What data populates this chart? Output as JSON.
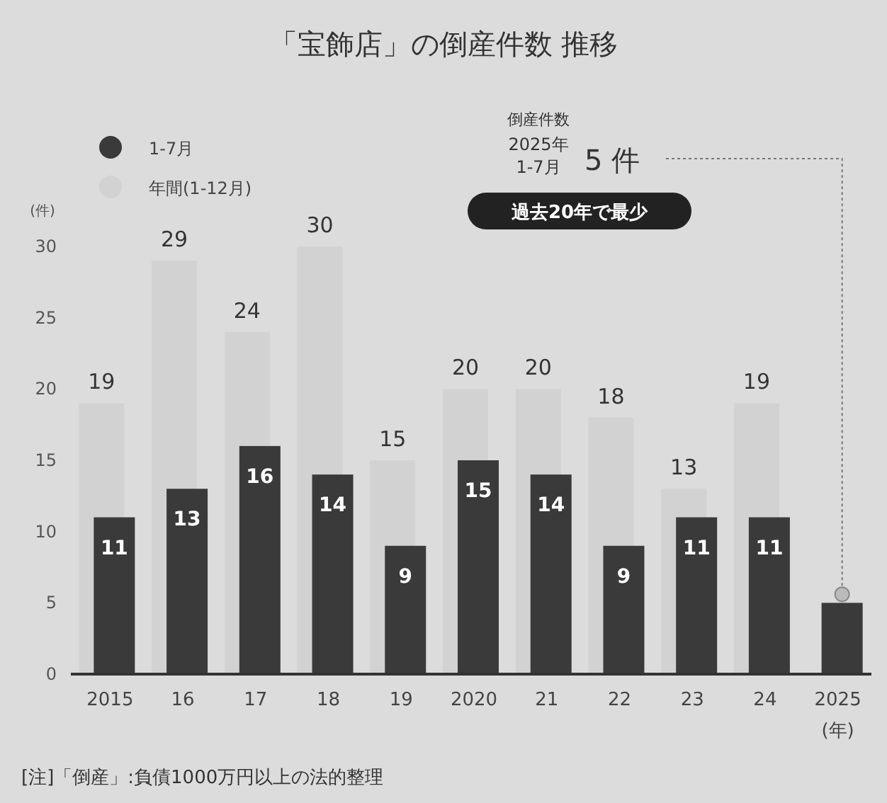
{
  "chart_data": {
    "type": "bar",
    "title": "「宝飾店」の倒産件数 推移",
    "categories": [
      "2015",
      "16",
      "17",
      "18",
      "19",
      "2020",
      "21",
      "22",
      "23",
      "24",
      "2025"
    ],
    "xlabel": "(年)",
    "ylabel": "(件)",
    "series": [
      {
        "name": "年間(1-12月)",
        "color": "#d2d2d2",
        "values": [
          19,
          29,
          24,
          30,
          15,
          20,
          20,
          18,
          13,
          19,
          null
        ],
        "value_labels": [
          "19",
          "29",
          "24",
          "30",
          "15",
          "20",
          "20",
          "18",
          "13",
          "19",
          null
        ]
      },
      {
        "name": "1-7月",
        "color": "#3a3a3a",
        "values": [
          11,
          13,
          16,
          14,
          9,
          15,
          14,
          9,
          11,
          11,
          5
        ],
        "value_labels": [
          "11",
          "13",
          "16",
          "14",
          "9",
          "15",
          "14",
          "9",
          "11",
          "11",
          null
        ]
      }
    ],
    "ylim": [
      0,
      30
    ],
    "yticks": [
      0,
      5,
      10,
      15,
      20,
      25,
      30
    ],
    "grid": false,
    "legend": "top left",
    "annotations": [
      "倒産件数",
      "2025年",
      "1-7月",
      "5 件",
      "過去20年で最少",
      "[注]「倒産」:負債1000万円以上の法的整理"
    ]
  }
}
